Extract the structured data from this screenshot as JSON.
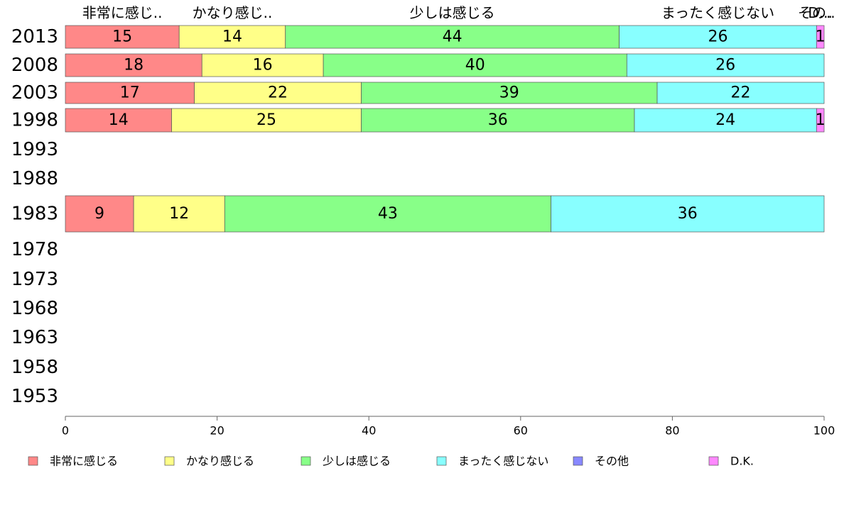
{
  "chart_data": {
    "type": "bar",
    "orientation": "horizontal",
    "stacked": true,
    "categories": [
      "2013",
      "2008",
      "2003",
      "1998",
      "1993",
      "1988",
      "1983",
      "1978",
      "1973",
      "1968",
      "1963",
      "1958",
      "1953"
    ],
    "series": [
      {
        "name": "非常に感じる",
        "top_label": "非常に感じ..",
        "color": "#ff8888",
        "values": [
          15,
          18,
          17,
          14,
          null,
          null,
          9,
          null,
          null,
          null,
          null,
          null,
          null
        ]
      },
      {
        "name": "かなり感じる",
        "top_label": "かなり感じ..",
        "color": "#ffff88",
        "values": [
          14,
          16,
          22,
          25,
          null,
          null,
          12,
          null,
          null,
          null,
          null,
          null,
          null
        ]
      },
      {
        "name": "少しは感じる",
        "top_label": "少しは感じる",
        "color": "#88ff88",
        "values": [
          44,
          40,
          39,
          36,
          null,
          null,
          43,
          null,
          null,
          null,
          null,
          null,
          null
        ]
      },
      {
        "name": "まったく感じない",
        "top_label": "まったく感じない",
        "color": "#88ffff",
        "values": [
          26,
          26,
          22,
          24,
          null,
          null,
          36,
          null,
          null,
          null,
          null,
          null,
          null
        ]
      },
      {
        "name": "その他",
        "top_label": "その..",
        "color": "#8888ff",
        "values": [
          0,
          0,
          0,
          0,
          null,
          null,
          0,
          null,
          null,
          null,
          null,
          null,
          null
        ]
      },
      {
        "name": "D.K.",
        "top_label": "D...",
        "color": "#ff88ff",
        "values": [
          1,
          0,
          0,
          1,
          null,
          null,
          0,
          null,
          null,
          null,
          null,
          null,
          null
        ]
      }
    ],
    "xlim": [
      0,
      100
    ],
    "xticks": [
      0,
      20,
      40,
      60,
      80,
      100
    ],
    "legend_position": "bottom",
    "grid": false
  }
}
